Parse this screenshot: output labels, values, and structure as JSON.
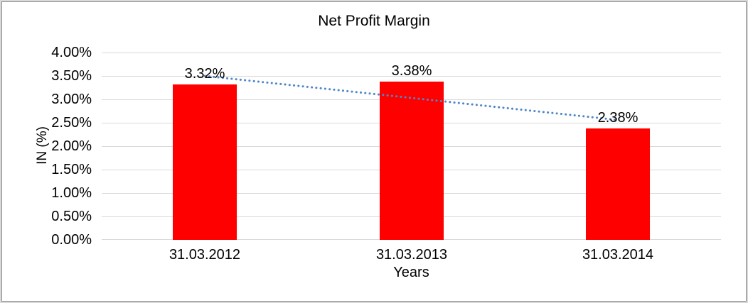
{
  "chart_data": {
    "type": "bar",
    "title": "Net Profit Margin",
    "categories": [
      "31.03.2012",
      "31.03.2013",
      "31.03.2014"
    ],
    "values": [
      3.32,
      3.38,
      2.38
    ],
    "data_labels": [
      "3.32%",
      "3.38%",
      "2.38%"
    ],
    "xlabel": "Years",
    "ylabel": "IN (%)",
    "ylim": [
      0,
      4
    ],
    "ytick_step": 0.5,
    "ytick_labels": [
      "4.00%",
      "3.50%",
      "3.00%",
      "2.50%",
      "2.00%",
      "1.50%",
      "1.00%",
      "0.50%",
      "0.00%"
    ],
    "grid": true,
    "legend": "none",
    "trendline": {
      "type": "linear",
      "style": "dotted",
      "start_value": 3.5,
      "end_value": 2.56
    },
    "colors": {
      "bar": "#FF0000",
      "trendline": "#4E87C7",
      "gridline": "#D9D9D9",
      "text": "#000000",
      "plot_background": "#FFFFFF",
      "frame_outer": "#D9D9D9",
      "frame_border": "#8C8C8C"
    }
  }
}
